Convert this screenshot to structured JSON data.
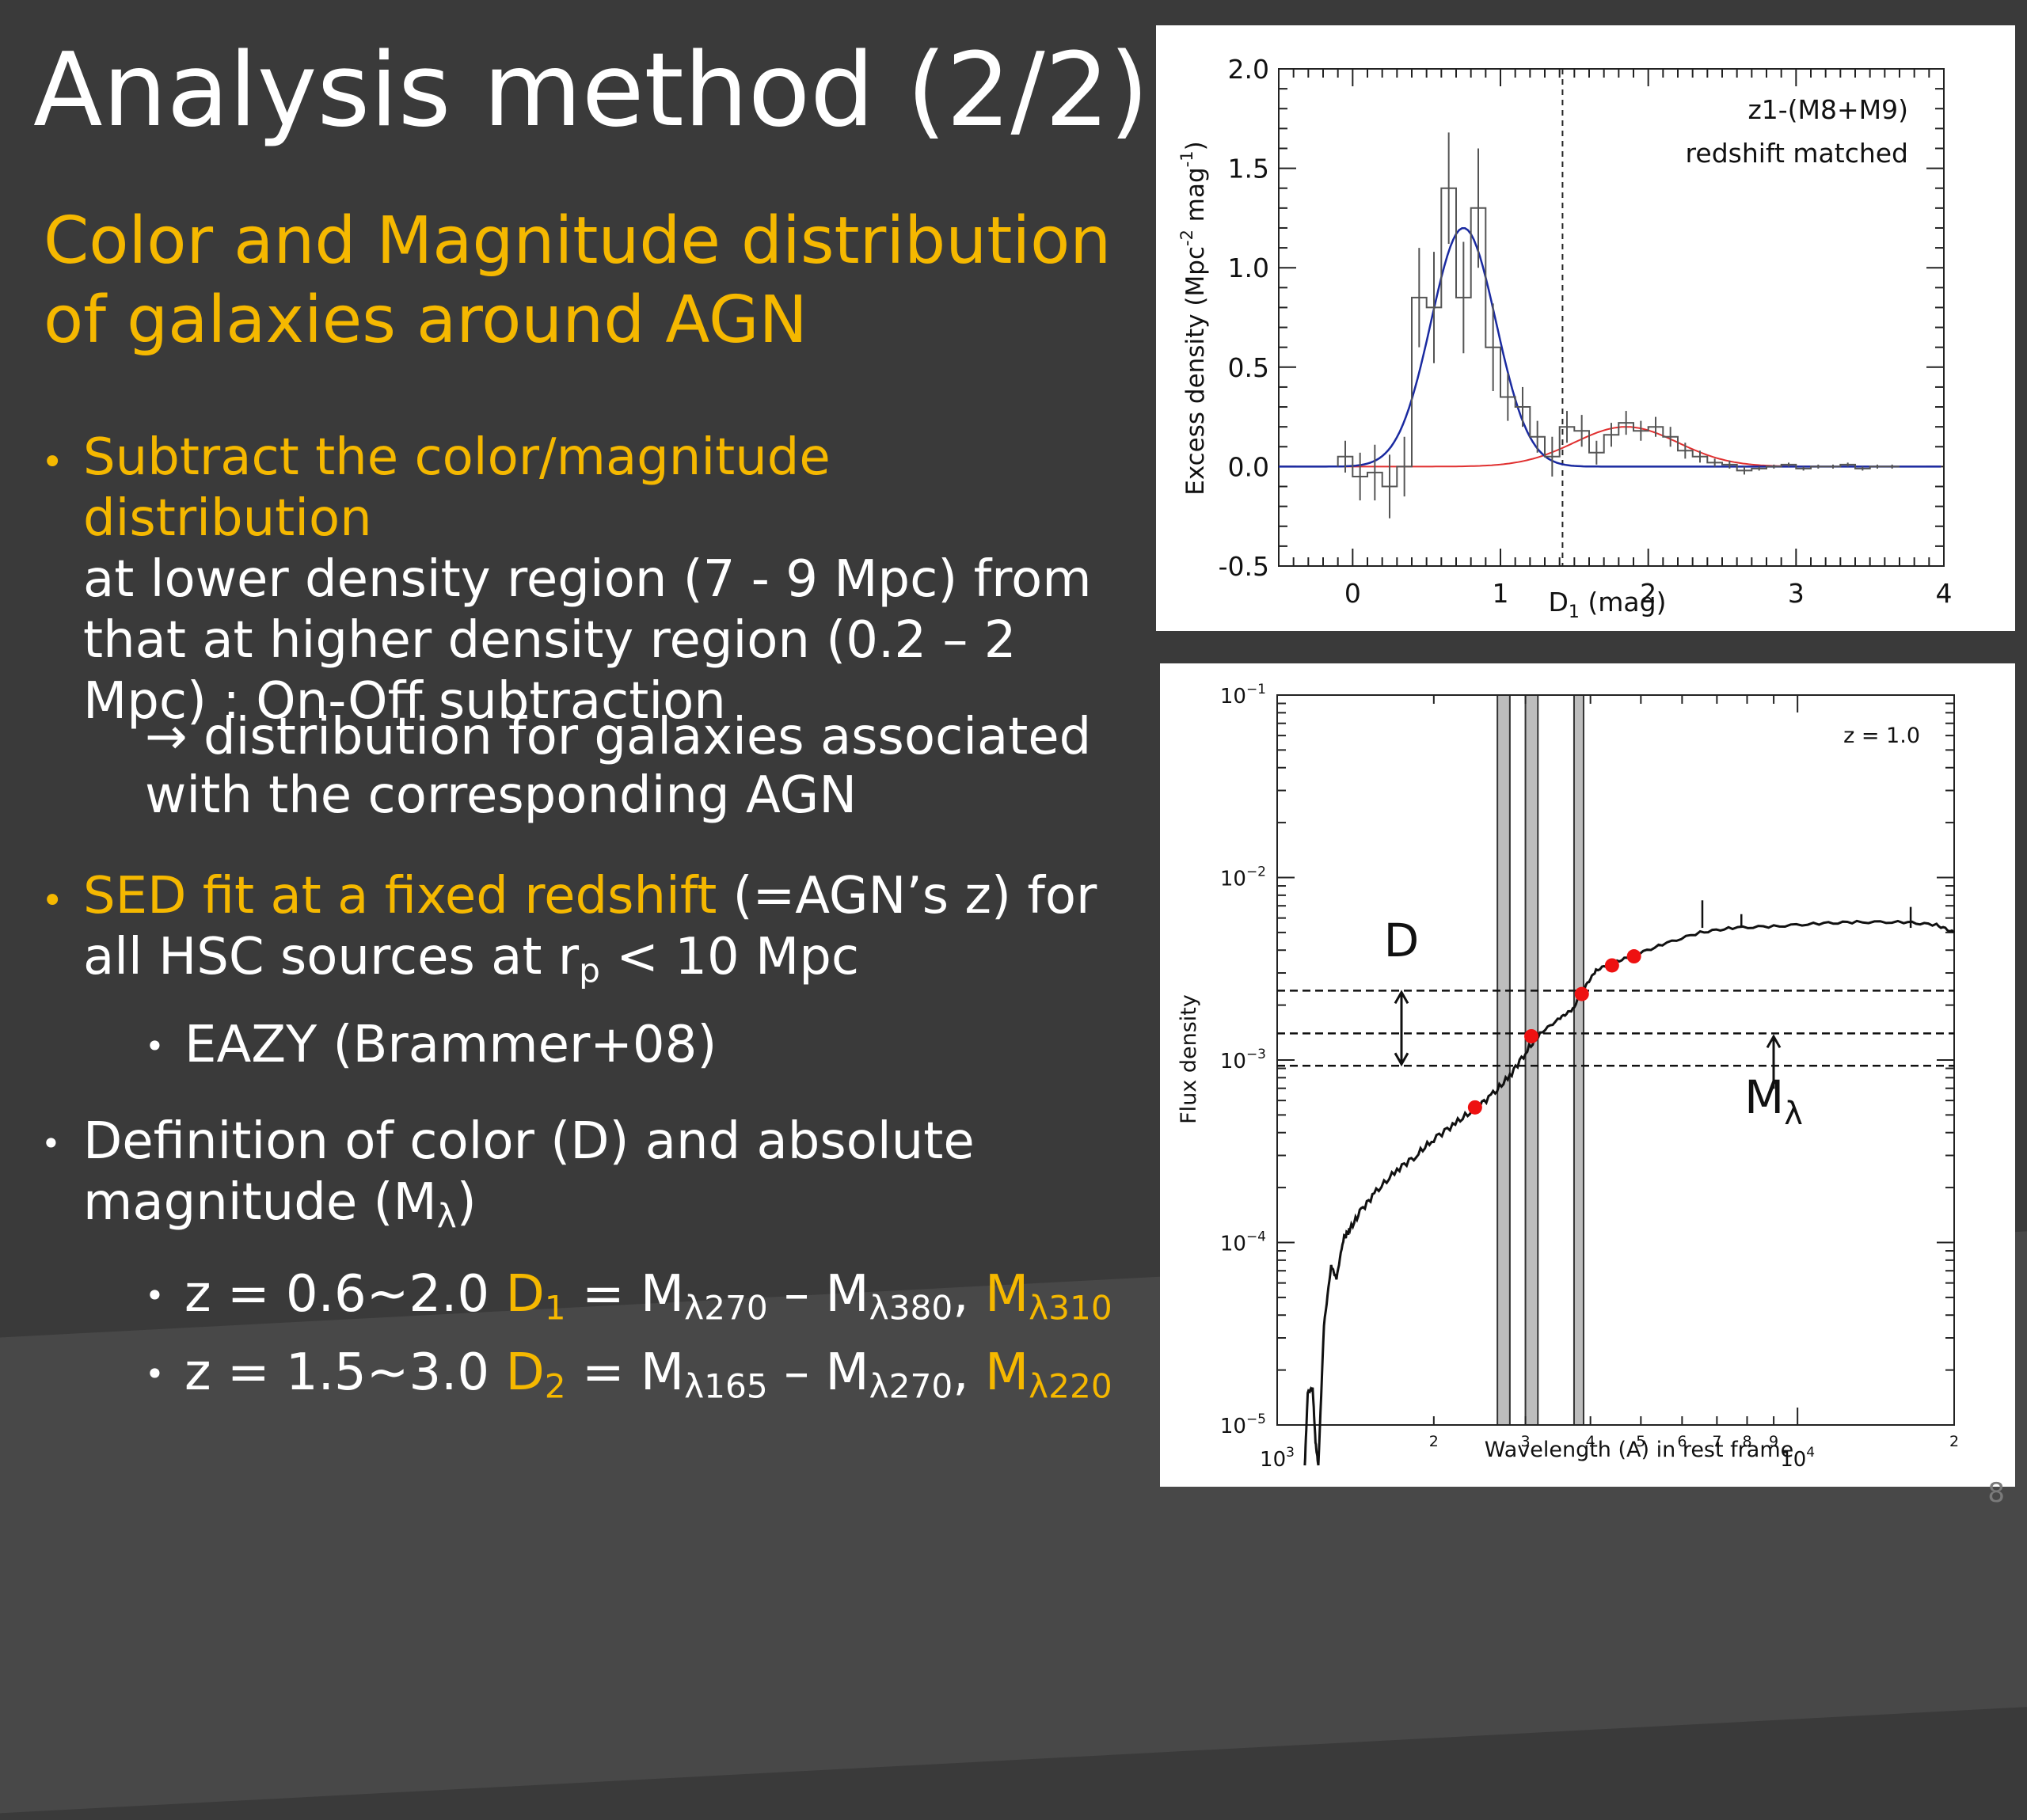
{
  "slide": {
    "title": "Analysis method (2/2)",
    "subtitle_line1": "Color and Magnitude distribution",
    "subtitle_line2": "of galaxies around AGN",
    "page_number": "8",
    "accent_color": "#f5b800",
    "background_color": "#3a3a3a"
  },
  "bullets": {
    "b1_orange": "Subtract the color/magnitude distribution",
    "b1_line2": "at lower density region (7 - 9 Mpc) from",
    "b1_line3": "that at higher density region (0.2 – 2",
    "b1_line4": "Mpc) : On-Off subtraction",
    "arrow_glyph": "→",
    "arrow_line1": " distribution for galaxies associated",
    "arrow_line2": "with the corresponding AGN",
    "b2_orange": "SED fit at a fixed redshift",
    "b2_white": " (=AGN’s z) for",
    "b2_line2_pre": "all HSC sources at r",
    "b2_line2_sub": "p",
    "b2_line2_post": " < 10 Mpc",
    "b2_sub": "EAZY (Brammer+08)",
    "b3_line1": "Definition of color (D) and absolute",
    "b3_line2_pre": "magnitude (M",
    "b3_line2_sub": "λ",
    "b3_line2_post": ")",
    "f1_pre": "z = 0.6~2.0 ",
    "f1_D": "D",
    "f1_Dsub": "1",
    "f1_eq": " = M",
    "f1_s1": "λ270",
    "f1_minus": " – M",
    "f1_s2": "λ380",
    "f1_comma": ", ",
    "f1_M": "M",
    "f1_s3": "λ310",
    "f2_pre": "z = 1.5~3.0 ",
    "f2_D": "D",
    "f2_Dsub": "2",
    "f2_eq": " = M",
    "f2_s1": "λ165",
    "f2_minus": " – M",
    "f2_s2": "λ270",
    "f2_comma": ", ",
    "f2_M": "M",
    "f2_s3": "λ220",
    "bullet_glyph": "•"
  },
  "chart_data": [
    {
      "type": "line",
      "annotation1": "z1-(M8+M9)",
      "annotation2": "redshift matched",
      "xlabel_pre": "D",
      "xlabel_sub": "1",
      "xlabel_post": " (mag)",
      "ylabel_pre": "Excess density (Mpc",
      "ylabel_sup1": "-2",
      "ylabel_mid": " mag",
      "ylabel_sup2": "-1",
      "ylabel_post": ")",
      "xlim": [
        -0.5,
        4
      ],
      "ylim": [
        -0.5,
        2.0
      ],
      "xticks": [
        0,
        1,
        2,
        3,
        4
      ],
      "xtick_labels": [
        "0",
        "1",
        "2",
        "3",
        "4"
      ],
      "yticks": [
        -0.5,
        0.0,
        0.5,
        1.0,
        1.5,
        2.0
      ],
      "ytick_labels": [
        "-0.5",
        "0.0",
        "0.5",
        "1.0",
        "1.5",
        "2.0"
      ],
      "vline_x": 1.42,
      "histogram": {
        "x": [
          -0.05,
          0.05,
          0.15,
          0.25,
          0.35,
          0.45,
          0.55,
          0.65,
          0.75,
          0.85,
          0.95,
          1.05,
          1.15,
          1.25,
          1.35,
          1.45,
          1.55,
          1.65,
          1.75,
          1.85,
          1.95,
          2.05,
          2.15,
          2.25,
          2.35,
          2.45,
          2.55,
          2.65,
          2.75,
          2.85,
          2.95,
          3.05,
          3.15,
          3.25,
          3.35,
          3.45,
          3.55,
          3.65
        ],
        "y": [
          0.05,
          -0.05,
          -0.03,
          -0.1,
          0.0,
          0.85,
          0.8,
          1.4,
          0.85,
          1.3,
          0.6,
          0.35,
          0.3,
          0.15,
          0.05,
          0.2,
          0.18,
          0.07,
          0.16,
          0.22,
          0.18,
          0.2,
          0.15,
          0.08,
          0.05,
          0.02,
          0.01,
          -0.02,
          -0.01,
          0.0,
          0.01,
          -0.01,
          0.0,
          0.0,
          0.01,
          -0.01,
          0.0,
          0.0
        ],
        "err": [
          0.08,
          0.12,
          0.14,
          0.16,
          0.15,
          0.25,
          0.28,
          0.28,
          0.28,
          0.3,
          0.22,
          0.12,
          0.1,
          0.08,
          0.1,
          0.08,
          0.08,
          0.06,
          0.06,
          0.06,
          0.05,
          0.05,
          0.05,
          0.04,
          0.03,
          0.02,
          0.02,
          0.02,
          0.01,
          0.01,
          0.01,
          0.01,
          0.01,
          0.01,
          0.01,
          0.01,
          0.01,
          0.01
        ]
      },
      "gauss_blue": {
        "amp": 1.2,
        "mu": 0.75,
        "sigma": 0.22,
        "color": "#1a2aa0"
      },
      "gauss_red": {
        "amp": 0.2,
        "mu": 1.85,
        "sigma": 0.35,
        "color": "#e03030"
      }
    },
    {
      "type": "line",
      "annotation_z": "z = 1.0",
      "xlabel": "Wavelength (A) in rest frame",
      "ylabel": "Flux density",
      "xscale": "log",
      "yscale": "log",
      "xlim": [
        1000,
        20000
      ],
      "ylim": [
        1e-05,
        0.1
      ],
      "y_major_base": "10",
      "y_major_exps": [
        "−1",
        "−2",
        "−3",
        "−4",
        "−5"
      ],
      "y_major_values": [
        0.1,
        0.01,
        0.001,
        0.0001,
        1e-05
      ],
      "x_major_base": "10",
      "x_major_exps": [
        "3",
        "4"
      ],
      "x_major_values": [
        1000,
        10000
      ],
      "x_minor_labels": [
        "2",
        "3",
        "4",
        "5",
        "6",
        "7",
        "8",
        "9",
        "2"
      ],
      "x_minor_values": [
        2000,
        3000,
        4000,
        5000,
        6000,
        7000,
        8000,
        9000,
        20000
      ],
      "gray_bands": [
        [
          2650,
          2800
        ],
        [
          3000,
          3170
        ],
        [
          3720,
          3880
        ]
      ],
      "band_color": "#bdbdbd",
      "dashed_levels": [
        0.0024,
        0.0014,
        0.00093
      ],
      "sed_points": [
        {
          "x": 2400,
          "y": 0.00055
        },
        {
          "x": 3080,
          "y": 0.00135
        },
        {
          "x": 3850,
          "y": 0.0023
        },
        {
          "x": 4400,
          "y": 0.0033
        },
        {
          "x": 4850,
          "y": 0.0037
        }
      ],
      "sed_curve": [
        [
          1130,
          6e-06
        ],
        [
          1145,
          1.5e-05
        ],
        [
          1170,
          1.6e-05
        ],
        [
          1185,
          8e-06
        ],
        [
          1200,
          6e-06
        ],
        [
          1230,
          3.5e-05
        ],
        [
          1270,
          7.5e-05
        ],
        [
          1300,
          6.3e-05
        ],
        [
          1340,
          0.000105
        ],
        [
          1380,
          0.000118
        ],
        [
          1450,
          0.00015
        ],
        [
          1550,
          0.00019
        ],
        [
          1700,
          0.00025
        ],
        [
          1850,
          0.0003
        ],
        [
          2000,
          0.00037
        ],
        [
          2200,
          0.00045
        ],
        [
          2400,
          0.00054
        ],
        [
          2600,
          0.00065
        ],
        [
          2800,
          0.00082
        ],
        [
          3000,
          0.0011
        ],
        [
          3200,
          0.0014
        ],
        [
          3500,
          0.0017
        ],
        [
          3700,
          0.0019
        ],
        [
          3900,
          0.0025
        ],
        [
          4100,
          0.0031
        ],
        [
          4400,
          0.0034
        ],
        [
          4800,
          0.0037
        ],
        [
          5500,
          0.0043
        ],
        [
          6500,
          0.005
        ],
        [
          7500,
          0.0053
        ],
        [
          9000,
          0.0054
        ],
        [
          11000,
          0.0056
        ],
        [
          13000,
          0.0057
        ],
        [
          16000,
          0.0057
        ],
        [
          18500,
          0.0055
        ],
        [
          20000,
          0.005
        ]
      ],
      "D_label": "D",
      "M_label": "M",
      "M_sub": "λ",
      "point_color": "#ee1111"
    }
  ]
}
